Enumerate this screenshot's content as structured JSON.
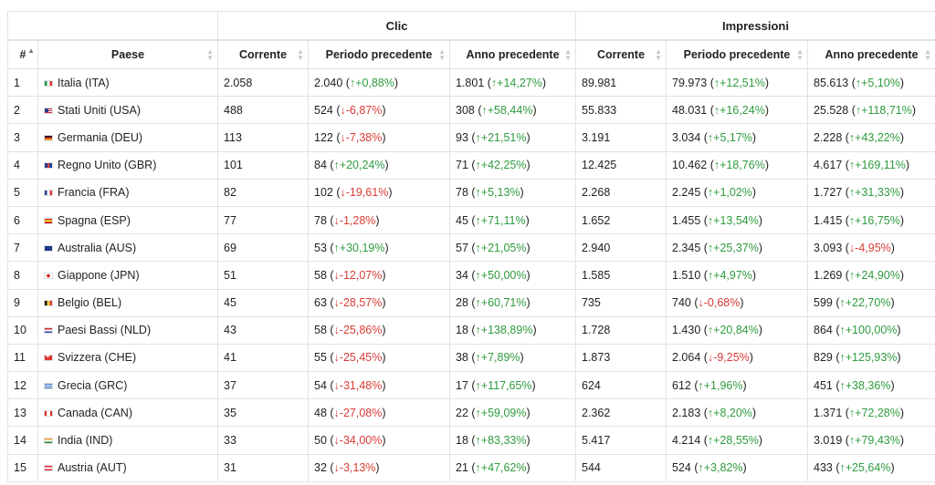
{
  "table": {
    "group_headers": {
      "clicks": "Clic",
      "impressions": "Impressioni"
    },
    "columns": {
      "rank": "#",
      "country": "Paese",
      "clicks_current": "Corrente",
      "clicks_prev_period": "Periodo precedente",
      "clicks_prev_year": "Anno precedente",
      "impr_current": "Corrente",
      "impr_prev_period": "Periodo precedente",
      "impr_prev_year": "Anno precedente"
    },
    "rows": [
      {
        "rank": "1",
        "flag": "ITA",
        "country": "Italia (ITA)",
        "c_cur": "2.058",
        "c_pp": "2.040",
        "c_pp_d": "+0,88%",
        "c_pp_dir": "up",
        "c_py": "1.801",
        "c_py_d": "+14,27%",
        "c_py_dir": "up",
        "i_cur": "89.981",
        "i_pp": "79.973",
        "i_pp_d": "+12,51%",
        "i_pp_dir": "up",
        "i_py": "85.613",
        "i_py_d": "+5,10%",
        "i_py_dir": "up"
      },
      {
        "rank": "2",
        "flag": "USA",
        "country": "Stati Uniti (USA)",
        "c_cur": "488",
        "c_pp": "524",
        "c_pp_d": "-6,87%",
        "c_pp_dir": "down",
        "c_py": "308",
        "c_py_d": "+58,44%",
        "c_py_dir": "up",
        "i_cur": "55.833",
        "i_pp": "48.031",
        "i_pp_d": "+16,24%",
        "i_pp_dir": "up",
        "i_py": "25.528",
        "i_py_d": "+118,71%",
        "i_py_dir": "up"
      },
      {
        "rank": "3",
        "flag": "DEU",
        "country": "Germania (DEU)",
        "c_cur": "113",
        "c_pp": "122",
        "c_pp_d": "-7,38%",
        "c_pp_dir": "down",
        "c_py": "93",
        "c_py_d": "+21,51%",
        "c_py_dir": "up",
        "i_cur": "3.191",
        "i_pp": "3.034",
        "i_pp_d": "+5,17%",
        "i_pp_dir": "up",
        "i_py": "2.228",
        "i_py_d": "+43,22%",
        "i_py_dir": "up"
      },
      {
        "rank": "4",
        "flag": "GBR",
        "country": "Regno Unito (GBR)",
        "c_cur": "101",
        "c_pp": "84",
        "c_pp_d": "+20,24%",
        "c_pp_dir": "up",
        "c_py": "71",
        "c_py_d": "+42,25%",
        "c_py_dir": "up",
        "i_cur": "12.425",
        "i_pp": "10.462",
        "i_pp_d": "+18,76%",
        "i_pp_dir": "up",
        "i_py": "4.617",
        "i_py_d": "+169,11%",
        "i_py_dir": "up"
      },
      {
        "rank": "5",
        "flag": "FRA",
        "country": "Francia (FRA)",
        "c_cur": "82",
        "c_pp": "102",
        "c_pp_d": "-19,61%",
        "c_pp_dir": "down",
        "c_py": "78",
        "c_py_d": "+5,13%",
        "c_py_dir": "up",
        "i_cur": "2.268",
        "i_pp": "2.245",
        "i_pp_d": "+1,02%",
        "i_pp_dir": "up",
        "i_py": "1.727",
        "i_py_d": "+31,33%",
        "i_py_dir": "up"
      },
      {
        "rank": "6",
        "flag": "ESP",
        "country": "Spagna (ESP)",
        "c_cur": "77",
        "c_pp": "78",
        "c_pp_d": "-1,28%",
        "c_pp_dir": "down",
        "c_py": "45",
        "c_py_d": "+71,11%",
        "c_py_dir": "up",
        "i_cur": "1.652",
        "i_pp": "1.455",
        "i_pp_d": "+13,54%",
        "i_pp_dir": "up",
        "i_py": "1.415",
        "i_py_d": "+16,75%",
        "i_py_dir": "up"
      },
      {
        "rank": "7",
        "flag": "AUS",
        "country": "Australia (AUS)",
        "c_cur": "69",
        "c_pp": "53",
        "c_pp_d": "+30,19%",
        "c_pp_dir": "up",
        "c_py": "57",
        "c_py_d": "+21,05%",
        "c_py_dir": "up",
        "i_cur": "2.940",
        "i_pp": "2.345",
        "i_pp_d": "+25,37%",
        "i_pp_dir": "up",
        "i_py": "3.093",
        "i_py_d": "-4,95%",
        "i_py_dir": "down"
      },
      {
        "rank": "8",
        "flag": "JPN",
        "country": "Giappone (JPN)",
        "c_cur": "51",
        "c_pp": "58",
        "c_pp_d": "-12,07%",
        "c_pp_dir": "down",
        "c_py": "34",
        "c_py_d": "+50,00%",
        "c_py_dir": "up",
        "i_cur": "1.585",
        "i_pp": "1.510",
        "i_pp_d": "+4,97%",
        "i_pp_dir": "up",
        "i_py": "1.269",
        "i_py_d": "+24,90%",
        "i_py_dir": "up"
      },
      {
        "rank": "9",
        "flag": "BEL",
        "country": "Belgio (BEL)",
        "c_cur": "45",
        "c_pp": "63",
        "c_pp_d": "-28,57%",
        "c_pp_dir": "down",
        "c_py": "28",
        "c_py_d": "+60,71%",
        "c_py_dir": "up",
        "i_cur": "735",
        "i_pp": "740",
        "i_pp_d": "-0,68%",
        "i_pp_dir": "down",
        "i_py": "599",
        "i_py_d": "+22,70%",
        "i_py_dir": "up"
      },
      {
        "rank": "10",
        "flag": "NLD",
        "country": "Paesi Bassi (NLD)",
        "c_cur": "43",
        "c_pp": "58",
        "c_pp_d": "-25,86%",
        "c_pp_dir": "down",
        "c_py": "18",
        "c_py_d": "+138,89%",
        "c_py_dir": "up",
        "i_cur": "1.728",
        "i_pp": "1.430",
        "i_pp_d": "+20,84%",
        "i_pp_dir": "up",
        "i_py": "864",
        "i_py_d": "+100,00%",
        "i_py_dir": "up"
      },
      {
        "rank": "11",
        "flag": "CHE",
        "country": "Svizzera (CHE)",
        "c_cur": "41",
        "c_pp": "55",
        "c_pp_d": "-25,45%",
        "c_pp_dir": "down",
        "c_py": "38",
        "c_py_d": "+7,89%",
        "c_py_dir": "up",
        "i_cur": "1.873",
        "i_pp": "2.064",
        "i_pp_d": "-9,25%",
        "i_pp_dir": "down",
        "i_py": "829",
        "i_py_d": "+125,93%",
        "i_py_dir": "up"
      },
      {
        "rank": "12",
        "flag": "GRC",
        "country": "Grecia (GRC)",
        "c_cur": "37",
        "c_pp": "54",
        "c_pp_d": "-31,48%",
        "c_pp_dir": "down",
        "c_py": "17",
        "c_py_d": "+117,65%",
        "c_py_dir": "up",
        "i_cur": "624",
        "i_pp": "612",
        "i_pp_d": "+1,96%",
        "i_pp_dir": "up",
        "i_py": "451",
        "i_py_d": "+38,36%",
        "i_py_dir": "up"
      },
      {
        "rank": "13",
        "flag": "CAN",
        "country": "Canada (CAN)",
        "c_cur": "35",
        "c_pp": "48",
        "c_pp_d": "-27,08%",
        "c_pp_dir": "down",
        "c_py": "22",
        "c_py_d": "+59,09%",
        "c_py_dir": "up",
        "i_cur": "2.362",
        "i_pp": "2.183",
        "i_pp_d": "+8,20%",
        "i_pp_dir": "up",
        "i_py": "1.371",
        "i_py_d": "+72,28%",
        "i_py_dir": "up"
      },
      {
        "rank": "14",
        "flag": "IND",
        "country": "India (IND)",
        "c_cur": "33",
        "c_pp": "50",
        "c_pp_d": "-34,00%",
        "c_pp_dir": "down",
        "c_py": "18",
        "c_py_d": "+83,33%",
        "c_py_dir": "up",
        "i_cur": "5.417",
        "i_pp": "4.214",
        "i_pp_d": "+28,55%",
        "i_pp_dir": "up",
        "i_py": "3.019",
        "i_py_d": "+79,43%",
        "i_py_dir": "up"
      },
      {
        "rank": "15",
        "flag": "AUT",
        "country": "Austria (AUT)",
        "c_cur": "31",
        "c_pp": "32",
        "c_pp_d": "-3,13%",
        "c_pp_dir": "down",
        "c_py": "21",
        "c_py_d": "+47,62%",
        "c_py_dir": "up",
        "i_cur": "544",
        "i_pp": "524",
        "i_pp_d": "+3,82%",
        "i_pp_dir": "up",
        "i_py": "433",
        "i_py_d": "+25,64%",
        "i_py_dir": "up"
      }
    ]
  },
  "colors": {
    "up": "#2e9b3e",
    "down": "#d93b35",
    "border": "#e2e2e2"
  },
  "icons": {
    "up_arrow": "arrow-up-icon",
    "down_arrow": "arrow-down-icon",
    "sort": "sort-icon"
  }
}
